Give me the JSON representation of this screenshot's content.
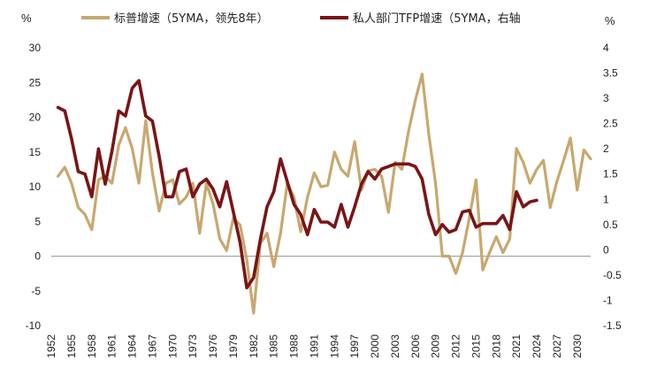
{
  "chart_data": {
    "type": "line",
    "title": "",
    "left_unit": "%",
    "right_unit": "%",
    "ylim_left": [
      -10,
      30
    ],
    "ylim_right": [
      -1.5,
      4
    ],
    "yticks_left": [
      "30",
      "25",
      "20",
      "15",
      "10",
      "5",
      "0",
      "-5",
      "-10"
    ],
    "yticks_right": [
      "4",
      "3.5",
      "3",
      "2.5",
      "2",
      "1.5",
      "1",
      "0.5",
      "0",
      "-0.5",
      "-1",
      "-1.5"
    ],
    "xlim": [
      1952,
      2032
    ],
    "xticks": [
      "1952",
      "1955",
      "1958",
      "1961",
      "1964",
      "1967",
      "1970",
      "1973",
      "1976",
      "1979",
      "1982",
      "1985",
      "1988",
      "1991",
      "1994",
      "1997",
      "2000",
      "2003",
      "2006",
      "2009",
      "2012",
      "2015",
      "2018",
      "2021",
      "2024",
      "2027",
      "2030"
    ],
    "legend_position": "top",
    "series": [
      {
        "name": "标普增速（5YMA，领先8年）",
        "axis": "left",
        "color": "#C8A86E",
        "x": [
          1953,
          1954,
          1955,
          1956,
          1957,
          1958,
          1959,
          1960,
          1961,
          1962,
          1963,
          1964,
          1965,
          1966,
          1967,
          1968,
          1969,
          1970,
          1971,
          1972,
          1973,
          1974,
          1975,
          1976,
          1977,
          1978,
          1979,
          1980,
          1981,
          1982,
          1983,
          1984,
          1985,
          1986,
          1987,
          1988,
          1989,
          1990,
          1991,
          1992,
          1993,
          1994,
          1995,
          1996,
          1997,
          1998,
          1999,
          2000,
          2001,
          2002,
          2003,
          2004,
          2005,
          2006,
          2007,
          2008,
          2009,
          2010,
          2011,
          2012,
          2013,
          2014,
          2015,
          2016,
          2017,
          2018,
          2019,
          2020,
          2021,
          2022,
          2023,
          2024,
          2025,
          2026,
          2027,
          2028,
          2029,
          2030,
          2031,
          2032
        ],
        "y": [
          11.5,
          12.8,
          10.5,
          7,
          6,
          3.8,
          11,
          11.5,
          10.5,
          16,
          18.5,
          15.5,
          10.5,
          19.5,
          12,
          6.5,
          10.5,
          11,
          7.5,
          8.5,
          10.5,
          3.3,
          10.5,
          7.5,
          2.5,
          0.8,
          5.5,
          4.5,
          -0.5,
          -8.2,
          1.8,
          3.3,
          -1.5,
          3.3,
          10.5,
          8.5,
          3.5,
          8.5,
          12,
          10,
          10.2,
          15,
          12.5,
          11.5,
          16.5,
          9.5,
          12.3,
          12.5,
          11.5,
          6.3,
          13.5,
          12.5,
          18,
          22.5,
          26.2,
          17.5,
          10.5,
          0,
          0,
          -2.5,
          0.5,
          5.5,
          11,
          -2,
          0.5,
          2.8,
          0.5,
          2.5,
          15.5,
          13.5,
          10.5,
          12.5,
          13.8,
          7,
          10.8,
          13.8,
          17,
          9.5,
          15.3,
          14
        ]
      },
      {
        "name": "私人部门TFP增速（5YMA，右轴",
        "axis": "right",
        "color": "#7A1416",
        "x": [
          1953,
          1954,
          1955,
          1956,
          1957,
          1958,
          1959,
          1960,
          1961,
          1962,
          1963,
          1964,
          1965,
          1966,
          1967,
          1968,
          1969,
          1970,
          1971,
          1972,
          1973,
          1974,
          1975,
          1976,
          1977,
          1978,
          1979,
          1980,
          1981,
          1982,
          1983,
          1984,
          1985,
          1986,
          1987,
          1988,
          1989,
          1990,
          1991,
          1992,
          1993,
          1994,
          1995,
          1996,
          1997,
          1998,
          1999,
          2000,
          2001,
          2002,
          2003,
          2004,
          2005,
          2006,
          2007,
          2008,
          2009,
          2010,
          2011,
          2012,
          2013,
          2014,
          2015,
          2016,
          2017,
          2018,
          2019,
          2020,
          2021,
          2022,
          2023,
          2024
        ],
        "y": [
          2.82,
          2.75,
          2.2,
          1.55,
          1.5,
          1.05,
          2,
          1.3,
          1.95,
          2.75,
          2.65,
          3.2,
          3.35,
          2.65,
          2.55,
          1.85,
          1.05,
          1.05,
          1.55,
          1.6,
          1.05,
          1.3,
          1.4,
          1.2,
          0.85,
          1.35,
          0.75,
          0.15,
          -0.75,
          -0.55,
          0.2,
          0.85,
          1.15,
          1.8,
          1.35,
          0.9,
          0.7,
          0.3,
          0.8,
          0.55,
          0.55,
          0.45,
          0.9,
          0.45,
          0.85,
          1.3,
          1.55,
          1.4,
          1.6,
          1.65,
          1.7,
          1.7,
          1.7,
          1.65,
          1.4,
          0.7,
          0.3,
          0.5,
          0.35,
          0.4,
          0.75,
          0.78,
          0.45,
          0.52,
          0.52,
          0.52,
          0.68,
          0.4,
          1.15,
          0.85,
          0.95,
          0.98
        ]
      }
    ]
  }
}
